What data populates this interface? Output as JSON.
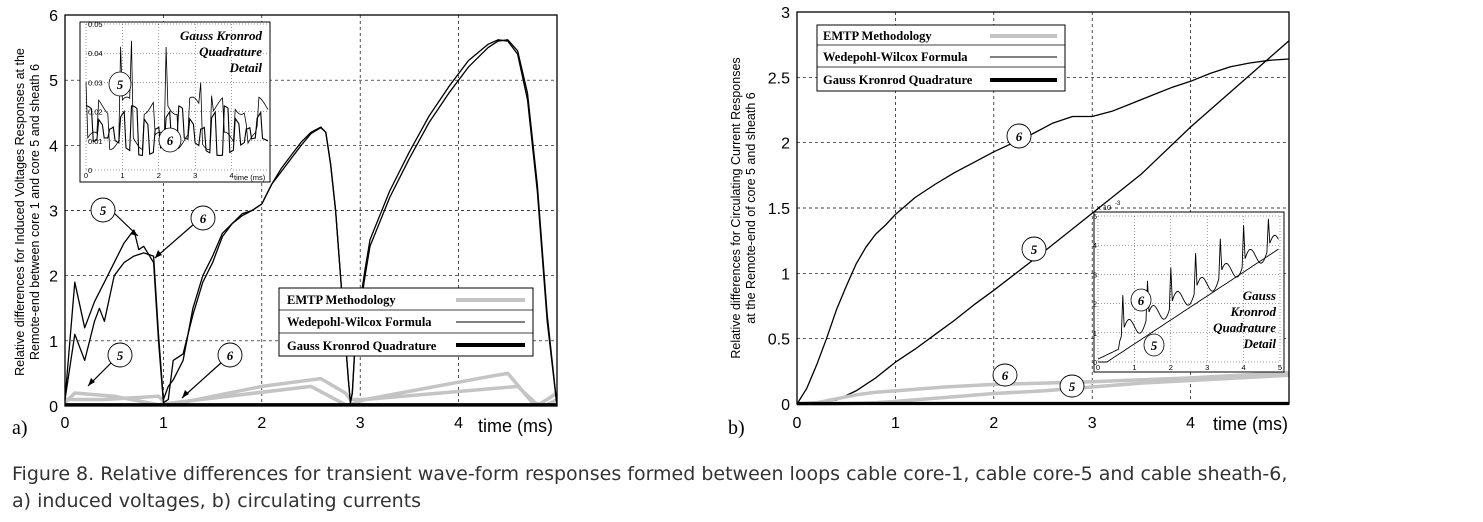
{
  "caption": {
    "line1": "Figure 8.  Relative differences for transient wave-form responses formed between loops cable core-1, cable core-5 and cable sheath-6,",
    "line2": "a) induced voltages, b) circulating currents"
  },
  "colors": {
    "emtp": "#c4c4c4",
    "wedepohl": "#000000",
    "gauss": "#000000"
  },
  "chart_data": [
    {
      "panel": "a)",
      "type": "line",
      "ylabel_line1": "Relative differences for Induced Voltages Responses at the",
      "ylabel_line2": "Remote-end between core 1 and core 5 and sheath 6",
      "xlabel": "time (ms)",
      "xlim": [
        0,
        5
      ],
      "ylim": [
        0,
        6
      ],
      "xticks": [
        "0",
        "1",
        "2",
        "3",
        "4"
      ],
      "yticks": [
        "0",
        "1",
        "2",
        "3",
        "4",
        "5",
        "6"
      ],
      "grid": true,
      "legend": {
        "position": "lower-right",
        "entries": [
          "EMTP Methodology",
          "Wedepohl-Wilcox Formula",
          "Gauss Kronrod Quadrature"
        ]
      },
      "curve_labels": [
        "5",
        "6",
        "5",
        "6"
      ],
      "series": [
        {
          "name": "EMTP 5",
          "style": "emtp",
          "x": [
            0,
            0.4,
            0.95,
            1.05,
            2,
            2.6,
            2.85,
            2.9,
            3.05,
            4.3,
            4.5,
            4.75,
            4.82,
            4.9,
            5
          ],
          "y": [
            0.1,
            0.1,
            0.15,
            0.01,
            0.3,
            0.42,
            0.2,
            0.1,
            0.1,
            0.45,
            0.5,
            0.05,
            0.03,
            0.1,
            0.2
          ]
        },
        {
          "name": "EMTP 6",
          "style": "emtp",
          "x": [
            0,
            0.1,
            0.5,
            0.95,
            1.05,
            2.5,
            2.85,
            2.9,
            3.05,
            4.6,
            4.8,
            4.9,
            5
          ],
          "y": [
            0.05,
            0.2,
            0.15,
            0.02,
            0.04,
            0.3,
            0.02,
            0.02,
            0.1,
            0.3,
            0.02,
            0.02,
            0.1
          ]
        },
        {
          "name": "Wedepohl 5",
          "style": "wedepohl",
          "x": [
            0,
            0.1,
            0.2,
            0.3,
            0.4,
            0.5,
            0.6,
            0.7,
            0.75,
            0.8,
            0.9,
            0.95,
            1.0,
            1.05,
            1.1,
            1.2,
            1.3,
            1.4,
            1.5,
            1.6,
            1.7,
            1.8,
            1.9,
            2.0,
            2.1,
            2.2,
            2.3,
            2.4,
            2.5,
            2.6,
            2.65,
            2.7,
            2.75,
            2.8,
            2.85,
            2.88,
            2.9,
            2.92,
            2.95,
            3.0,
            3.05,
            3.1,
            3.3,
            3.5,
            3.7,
            3.9,
            4.1,
            4.3,
            4.4,
            4.5,
            4.6,
            4.7,
            4.8,
            4.9,
            5.0
          ],
          "y": [
            0.1,
            1.9,
            1.2,
            1.6,
            1.9,
            2.2,
            2.5,
            2.7,
            2.4,
            2.45,
            2.2,
            1.0,
            0.05,
            0.1,
            0.7,
            0.8,
            1.4,
            1.9,
            2.2,
            2.6,
            2.8,
            2.95,
            3.0,
            3.1,
            3.4,
            3.65,
            3.85,
            4.05,
            4.2,
            4.28,
            4.2,
            3.7,
            3.0,
            2.0,
            1.0,
            0.4,
            0.05,
            0.2,
            1.0,
            1.6,
            2.1,
            2.55,
            3.3,
            3.9,
            4.45,
            4.9,
            5.3,
            5.55,
            5.62,
            5.6,
            5.4,
            4.7,
            3.3,
            1.3,
            0.0
          ]
        },
        {
          "name": "Wedepohl 6",
          "style": "wedepohl",
          "x": [
            0,
            0.1,
            0.2,
            0.3,
            0.35,
            0.4,
            0.5,
            0.6,
            0.7,
            0.8,
            0.9,
            0.95,
            1.0,
            1.05,
            1.1,
            1.2,
            1.3,
            1.4,
            1.5,
            1.6,
            1.7,
            1.8,
            1.9,
            2.0,
            2.1,
            2.2,
            2.3,
            2.4,
            2.5,
            2.6,
            2.65,
            2.7,
            2.75,
            2.8,
            2.85,
            2.88,
            2.9,
            2.92,
            2.95,
            3.0,
            3.05,
            3.1,
            3.3,
            3.5,
            3.7,
            3.9,
            4.1,
            4.3,
            4.4,
            4.5,
            4.6,
            4.7,
            4.8,
            4.9,
            5.0
          ],
          "y": [
            0.1,
            1.1,
            0.7,
            1.3,
            1.5,
            1.3,
            2.0,
            2.2,
            2.3,
            2.35,
            2.3,
            1.1,
            0.1,
            0.3,
            0.4,
            0.7,
            1.5,
            2.0,
            2.3,
            2.65,
            2.8,
            2.92,
            3.0,
            3.1,
            3.4,
            3.6,
            3.8,
            4.0,
            4.18,
            4.27,
            4.2,
            3.7,
            3.0,
            2.0,
            1.0,
            0.4,
            0.05,
            0.2,
            1.0,
            1.5,
            2.0,
            2.45,
            3.2,
            3.8,
            4.35,
            4.8,
            5.2,
            5.5,
            5.6,
            5.62,
            5.45,
            4.8,
            3.4,
            1.4,
            0.0
          ]
        },
        {
          "name": "Gauss",
          "style": "gauss",
          "x": [
            0,
            5
          ],
          "y": [
            0.02,
            0.02
          ]
        }
      ],
      "inset": {
        "title_lines": [
          "Gauss Kronrod",
          "Quadrature",
          "Detail"
        ],
        "xlabel": "time (ms)",
        "xticks": [
          "0",
          "1",
          "2",
          "3",
          "4"
        ],
        "yticks": [
          "0",
          "0.01",
          "0.02",
          "0.03",
          "0.04",
          "0.05"
        ],
        "xlim": [
          0,
          5
        ],
        "ylim": [
          0,
          0.05
        ],
        "curve_labels": [
          "5",
          "6"
        ]
      }
    },
    {
      "panel": "b)",
      "type": "line",
      "ylabel_line1": "Relative differences for Circulating Current Responses",
      "ylabel_line2": "at the Remote-end of core 5 and sheath 6",
      "xlabel": "time (ms)",
      "xlim": [
        0,
        5
      ],
      "ylim": [
        0,
        3
      ],
      "xticks": [
        "0",
        "1",
        "2",
        "3",
        "4"
      ],
      "yticks": [
        "0",
        "0.5",
        "1",
        "1.5",
        "2",
        "2.5",
        "3"
      ],
      "grid": true,
      "legend": {
        "position": "upper-left",
        "entries": [
          "EMTP Methodology",
          "Wedepohl-Wilcox Formula",
          "Gauss Kronrod Quadrature"
        ]
      },
      "curve_labels": [
        "6",
        "5",
        "6",
        "5"
      ],
      "series": [
        {
          "name": "Wedepohl 6",
          "style": "wedepohl",
          "x": [
            0,
            0.1,
            0.2,
            0.3,
            0.4,
            0.5,
            0.6,
            0.7,
            0.8,
            0.9,
            1.0,
            1.2,
            1.4,
            1.6,
            1.8,
            2.0,
            2.2,
            2.4,
            2.6,
            2.8,
            3.0,
            3.2,
            3.4,
            3.6,
            3.8,
            4.0,
            4.2,
            4.4,
            4.6,
            4.8,
            5.0
          ],
          "y": [
            0,
            0.12,
            0.3,
            0.5,
            0.72,
            0.9,
            1.07,
            1.2,
            1.3,
            1.37,
            1.45,
            1.58,
            1.68,
            1.77,
            1.85,
            1.93,
            2.0,
            2.07,
            2.15,
            2.2,
            2.2,
            2.24,
            2.3,
            2.36,
            2.42,
            2.47,
            2.53,
            2.58,
            2.61,
            2.63,
            2.64
          ]
        },
        {
          "name": "Wedepohl 5",
          "style": "wedepohl",
          "x": [
            0,
            0.2,
            0.4,
            0.6,
            0.8,
            1.0,
            1.2,
            1.4,
            1.6,
            1.8,
            2.0,
            2.5,
            3.0,
            3.5,
            4.0,
            4.5,
            5.0
          ],
          "y": [
            0,
            0.01,
            0.03,
            0.1,
            0.2,
            0.32,
            0.42,
            0.53,
            0.64,
            0.76,
            0.87,
            1.16,
            1.46,
            1.76,
            2.12,
            2.45,
            2.78
          ]
        },
        {
          "name": "EMTP 6",
          "style": "emtp",
          "x": [
            0,
            0.2,
            0.4,
            0.6,
            0.8,
            1.0,
            1.5,
            2.0,
            2.5,
            3.0,
            3.5,
            4.0,
            4.5,
            5.0
          ],
          "y": [
            0,
            0.01,
            0.04,
            0.07,
            0.09,
            0.1,
            0.13,
            0.15,
            0.16,
            0.17,
            0.185,
            0.2,
            0.22,
            0.24
          ]
        },
        {
          "name": "EMTP 5",
          "style": "emtp",
          "x": [
            0,
            0.4,
            0.8,
            1.0,
            1.5,
            2.0,
            2.5,
            3.0,
            3.5,
            4.0,
            4.5,
            5.0
          ],
          "y": [
            0,
            0.0,
            0.01,
            0.02,
            0.05,
            0.08,
            0.1,
            0.13,
            0.16,
            0.18,
            0.2,
            0.22
          ]
        },
        {
          "name": "Gauss",
          "style": "gauss",
          "x": [
            0,
            5
          ],
          "y": [
            0.004,
            0.004
          ]
        }
      ],
      "inset": {
        "title_lines": [
          "Gauss",
          "Kronrod",
          "Quadrature",
          "Detail"
        ],
        "exponent": "x 10",
        "exponent_power": "-3",
        "xticks": [
          "0",
          "1",
          "2",
          "3",
          "4",
          "5"
        ],
        "yticks": [
          "0",
          "1",
          "2",
          "3",
          "4",
          "5"
        ],
        "xlim": [
          0,
          5
        ],
        "ylim": [
          0,
          5
        ],
        "curve_labels": [
          "6",
          "5"
        ]
      }
    }
  ]
}
